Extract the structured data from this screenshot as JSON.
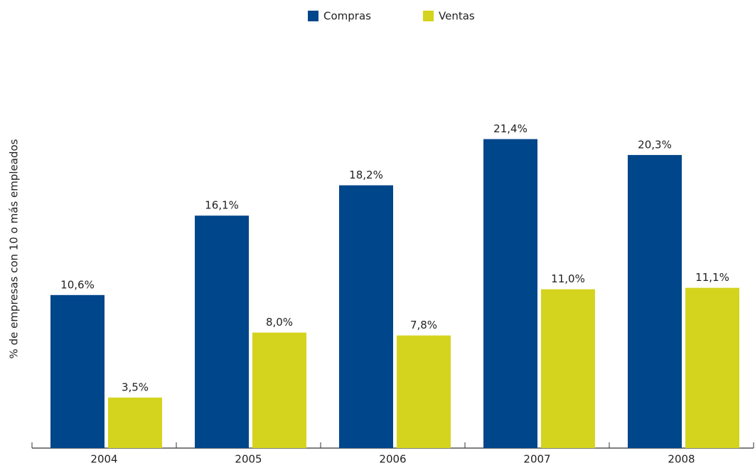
{
  "chart_data": {
    "type": "bar",
    "ylabel": "% de empresas con 10 o más empleados",
    "categories": [
      "2004",
      "2005",
      "2006",
      "2007",
      "2008"
    ],
    "series": [
      {
        "name": "Compras",
        "color": "#00468b",
        "values": [
          10.6,
          16.1,
          18.2,
          21.4,
          20.3
        ],
        "value_labels": [
          "10,6%",
          "16,1%",
          "18,2%",
          "21,4%",
          "20,3%"
        ]
      },
      {
        "name": "Ventas",
        "color": "#d4d41f",
        "values": [
          3.5,
          8.0,
          7.8,
          11.0,
          11.1
        ],
        "value_labels": [
          "3,5%",
          "8,0%",
          "7,8%",
          "11,0%",
          "11,1%"
        ]
      }
    ],
    "ylim": [
      0,
      25
    ],
    "legend": "top"
  }
}
